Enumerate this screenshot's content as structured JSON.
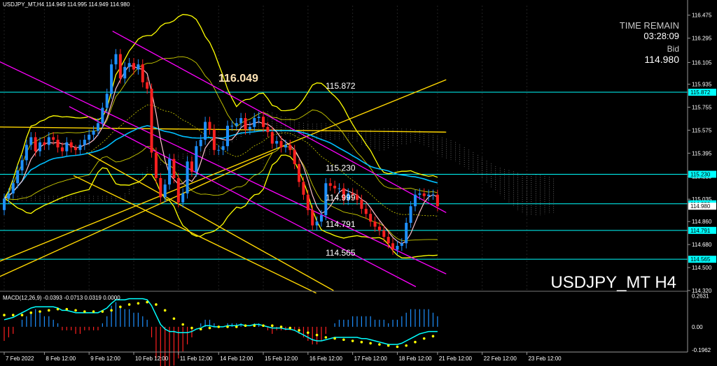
{
  "header": {
    "symbol_line": "USDJPY_MT,H4  114.949 114.995 114.949 114.980"
  },
  "info_panel": {
    "time_remain_label": "TIME REMAIN",
    "time_remain_value": "03:28:09",
    "bid_label": "Bid",
    "bid_value": "114.980"
  },
  "watermark": "USDJPY_MT H4",
  "macd_header": "MACD(12,26,9) -0.0393 -0.0713 0.0319 0.0000",
  "colors": {
    "background": "#000000",
    "bull": "#1e90ff",
    "bear": "#ff2020",
    "bands": "#ffff00",
    "channel": "#ff00ff",
    "level_lines": "#00ffff",
    "trend_lines": "#ffd700",
    "ma_fast": "#ffc0cb",
    "ma_slow": "#00bfff",
    "macd_line": "#00ffff",
    "macd_signal": "#ffff00",
    "axis_text": "#ffffff"
  },
  "chart_data": [
    {
      "type": "candlestick",
      "title": "USDJPY_MT,H4",
      "ylim": [
        114.32,
        116.55
      ],
      "y_ticks": [
        "116.475",
        "116.295",
        "116.105",
        "115.935",
        "115.755",
        "115.575",
        "115.395",
        "115.215",
        "115.035",
        "114.860",
        "114.680",
        "114.500",
        "114.320"
      ],
      "x_tick_labels": [
        "7 Feb 2022",
        "8 Feb 12:00",
        "9 Feb 12:00",
        "10 Feb 12:00",
        "11 Feb 12:00",
        "14 Feb 12:00",
        "15 Feb 12:00",
        "16 Feb 12:00",
        "17 Feb 12:00",
        "18 Feb 12:00",
        "21 Feb 12:00",
        "22 Feb 12:00",
        "23 Feb 12:00"
      ],
      "x_tick_index": [
        0,
        9,
        19,
        29,
        39,
        48,
        58,
        68,
        78,
        88,
        97,
        107,
        117
      ],
      "horizontal_levels": [
        {
          "label": "115.872",
          "value": 115.872
        },
        {
          "label": "115.230",
          "value": 115.23
        },
        {
          "label": "114.999",
          "value": 114.999
        },
        {
          "label": "114.791",
          "value": 114.791
        },
        {
          "label": "114.565",
          "value": 114.565
        }
      ],
      "annotation": "116.049",
      "current_price": {
        "label": "114.980",
        "value": 114.98
      },
      "candles": {
        "open": [
          114.95,
          115.04,
          115.08,
          115.16,
          115.26,
          115.34,
          115.46,
          115.52,
          115.41,
          115.48,
          115.46,
          115.52,
          115.5,
          115.44,
          115.41,
          115.48,
          115.44,
          115.42,
          115.46,
          115.5,
          115.54,
          115.57,
          115.63,
          115.75,
          115.86,
          116.09,
          116.17,
          115.98,
          116.07,
          116.1,
          116.05,
          116.09,
          115.95,
          115.9,
          115.4,
          115.2,
          115.05,
          115.15,
          115.35,
          115.2,
          115.01,
          115.08,
          115.33,
          115.25,
          115.45,
          115.5,
          115.64,
          115.58,
          115.42,
          115.42,
          115.45,
          115.61,
          115.61,
          115.63,
          115.67,
          115.58,
          115.6,
          115.67,
          115.68,
          115.6,
          115.56,
          115.47,
          115.49,
          115.44,
          115.46,
          115.42,
          115.31,
          115.17,
          115.07,
          114.95,
          114.83,
          114.86,
          114.91,
          115.16,
          115.14,
          115.12,
          115.12,
          115.03,
          115.08,
          115.07,
          115.03,
          114.96,
          114.92,
          114.86,
          114.82,
          114.79,
          114.74,
          114.69,
          114.64,
          114.67,
          114.69,
          114.85,
          114.98,
          115.07,
          115.08,
          115.06,
          115.07,
          115.07
        ],
        "close": [
          115.04,
          115.08,
          115.16,
          115.26,
          115.34,
          115.46,
          115.52,
          115.41,
          115.48,
          115.46,
          115.52,
          115.5,
          115.44,
          115.41,
          115.48,
          115.44,
          115.42,
          115.46,
          115.5,
          115.54,
          115.57,
          115.63,
          115.75,
          115.86,
          116.09,
          116.17,
          115.98,
          116.07,
          116.1,
          116.05,
          116.09,
          115.95,
          115.9,
          115.4,
          115.2,
          115.05,
          115.15,
          115.35,
          115.2,
          115.01,
          115.08,
          115.33,
          115.25,
          115.45,
          115.5,
          115.64,
          115.58,
          115.42,
          115.42,
          115.45,
          115.61,
          115.61,
          115.63,
          115.67,
          115.58,
          115.6,
          115.67,
          115.68,
          115.6,
          115.56,
          115.47,
          115.49,
          115.44,
          115.46,
          115.42,
          115.31,
          115.17,
          115.07,
          114.95,
          114.83,
          114.86,
          114.91,
          115.16,
          115.14,
          115.12,
          115.12,
          115.03,
          115.08,
          115.07,
          115.03,
          114.96,
          114.92,
          114.86,
          114.82,
          114.79,
          114.74,
          114.69,
          114.64,
          114.67,
          114.69,
          114.85,
          114.98,
          115.07,
          115.08,
          115.06,
          115.07,
          115.07,
          114.98
        ],
        "high": [
          115.08,
          115.12,
          115.2,
          115.3,
          115.38,
          115.5,
          115.56,
          115.56,
          115.52,
          115.52,
          115.56,
          115.56,
          115.54,
          115.48,
          115.52,
          115.5,
          115.46,
          115.5,
          115.54,
          115.58,
          115.61,
          115.67,
          115.79,
          115.9,
          116.13,
          116.21,
          116.21,
          116.11,
          116.14,
          116.14,
          116.13,
          116.13,
          115.99,
          115.94,
          115.44,
          115.24,
          115.19,
          115.39,
          115.39,
          115.24,
          115.12,
          115.37,
          115.37,
          115.49,
          115.54,
          115.68,
          115.68,
          115.62,
          115.46,
          115.49,
          115.65,
          115.65,
          115.67,
          115.71,
          115.71,
          115.64,
          115.71,
          115.72,
          115.72,
          115.64,
          115.6,
          115.53,
          115.53,
          115.5,
          115.5,
          115.46,
          115.35,
          115.21,
          115.11,
          114.99,
          114.9,
          114.95,
          115.2,
          115.2,
          115.18,
          115.16,
          115.16,
          115.12,
          115.12,
          115.11,
          115.07,
          115.0,
          114.96,
          114.9,
          114.86,
          114.83,
          114.78,
          114.73,
          114.71,
          114.73,
          114.89,
          115.02,
          115.11,
          115.12,
          115.12,
          115.11,
          115.11,
          115.11
        ],
        "low": [
          114.91,
          115.0,
          115.04,
          115.12,
          115.22,
          115.3,
          115.42,
          115.37,
          115.37,
          115.42,
          115.42,
          115.46,
          115.4,
          115.37,
          115.37,
          115.4,
          115.38,
          115.38,
          115.42,
          115.46,
          115.5,
          115.53,
          115.59,
          115.71,
          115.82,
          116.05,
          115.94,
          115.94,
          116.03,
          116.01,
          116.01,
          115.91,
          115.86,
          115.36,
          115.16,
          115.01,
          115.01,
          115.11,
          115.16,
          114.97,
          114.97,
          115.04,
          115.21,
          115.21,
          115.41,
          115.46,
          115.54,
          115.38,
          115.38,
          115.38,
          115.41,
          115.57,
          115.57,
          115.59,
          115.54,
          115.54,
          115.56,
          115.63,
          115.56,
          115.52,
          115.43,
          115.43,
          115.4,
          115.4,
          115.38,
          115.27,
          115.13,
          115.03,
          114.91,
          114.79,
          114.79,
          114.82,
          114.87,
          115.1,
          115.08,
          115.08,
          114.99,
          114.99,
          115.03,
          114.99,
          114.92,
          114.88,
          114.82,
          114.78,
          114.75,
          114.7,
          114.65,
          114.6,
          114.6,
          114.63,
          114.65,
          114.81,
          114.94,
          115.03,
          115.02,
          115.02,
          115.03,
          114.94
        ]
      }
    },
    {
      "type": "bar",
      "title": "MACD(12,26,9) -0.0393 -0.0713 0.0319 0.0000",
      "ylim": [
        -0.215,
        0.285
      ],
      "y_ticks": [
        "0.2631",
        "0.00",
        "-0.1962"
      ],
      "series": [
        {
          "name": "MACD",
          "values": [
            0.06,
            0.07,
            0.08,
            0.1,
            0.12,
            0.14,
            0.16,
            0.17,
            0.17,
            0.17,
            0.17,
            0.17,
            0.16,
            0.14,
            0.14,
            0.13,
            0.12,
            0.12,
            0.12,
            0.12,
            0.12,
            0.12,
            0.14,
            0.16,
            0.2,
            0.23,
            0.23,
            0.23,
            0.24,
            0.24,
            0.24,
            0.24,
            0.23,
            0.18,
            0.1,
            0.02,
            -0.02,
            -0.04,
            -0.04,
            -0.05,
            -0.05,
            -0.05,
            -0.04,
            -0.02,
            -0.01,
            0.01,
            0.01,
            0.0,
            0.0,
            0.0,
            0.01,
            0.01,
            0.01,
            0.02,
            0.01,
            0.01,
            0.02,
            0.02,
            0.01,
            0.0,
            -0.01,
            -0.01,
            -0.01,
            -0.02,
            -0.02,
            -0.03,
            -0.05,
            -0.07,
            -0.09,
            -0.11,
            -0.12,
            -0.12,
            -0.11,
            -0.1,
            -0.09,
            -0.09,
            -0.09,
            -0.09,
            -0.09,
            -0.09,
            -0.1,
            -0.1,
            -0.11,
            -0.12,
            -0.13,
            -0.14,
            -0.15,
            -0.15,
            -0.15,
            -0.14,
            -0.12,
            -0.1,
            -0.08,
            -0.06,
            -0.05,
            -0.04,
            -0.04,
            -0.04
          ]
        },
        {
          "name": "Signal",
          "values": [
            0.1,
            0.1,
            0.1,
            0.1,
            0.1,
            0.11,
            0.12,
            0.12,
            0.13,
            0.14,
            0.14,
            0.15,
            0.15,
            0.15,
            0.15,
            0.14,
            0.14,
            0.14,
            0.13,
            0.13,
            0.13,
            0.13,
            0.13,
            0.13,
            0.14,
            0.16,
            0.17,
            0.18,
            0.19,
            0.2,
            0.2,
            0.21,
            0.21,
            0.21,
            0.19,
            0.17,
            0.14,
            0.1,
            0.07,
            0.04,
            0.02,
            0.0,
            -0.01,
            -0.02,
            -0.02,
            -0.01,
            -0.01,
            -0.01,
            0.0,
            0.0,
            0.0,
            0.0,
            0.0,
            0.01,
            0.01,
            0.01,
            0.01,
            0.01,
            0.01,
            0.01,
            0.01,
            0.0,
            0.0,
            -0.01,
            -0.01,
            -0.02,
            -0.03,
            -0.04,
            -0.05,
            -0.06,
            -0.07,
            -0.08,
            -0.09,
            -0.1,
            -0.1,
            -0.11,
            -0.11,
            -0.11,
            -0.12,
            -0.12,
            -0.13,
            -0.13,
            -0.14,
            -0.14,
            -0.15,
            -0.16,
            -0.16,
            -0.17,
            -0.17,
            -0.17,
            -0.16,
            -0.15,
            -0.13,
            -0.11,
            -0.1,
            -0.09,
            -0.08,
            -0.07
          ]
        }
      ]
    }
  ]
}
